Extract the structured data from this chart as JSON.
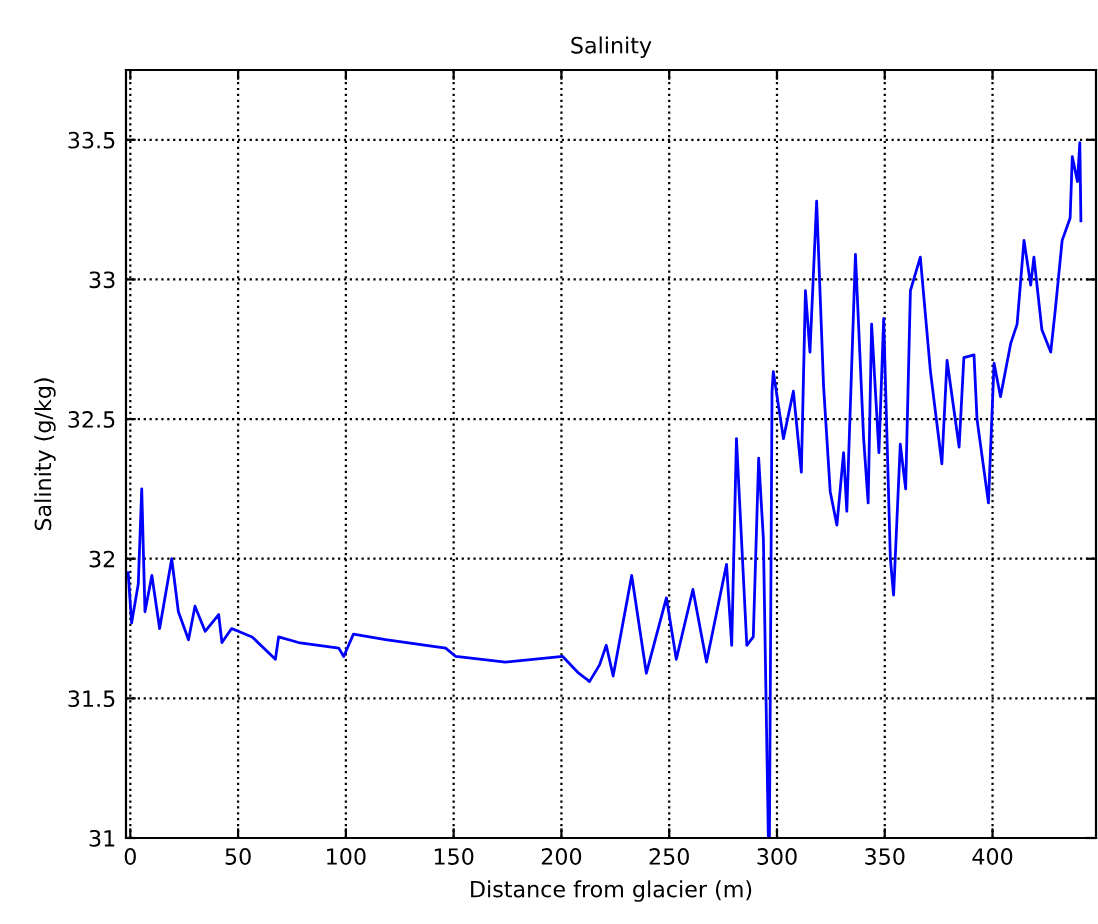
{
  "chart_data": {
    "type": "line",
    "title": "Salinity",
    "xlabel": "Distance from glacier (m)",
    "ylabel": "Salinity (g/kg)",
    "xlim": [
      -2,
      448
    ],
    "ylim": [
      31,
      33.75
    ],
    "xticks": [
      0,
      50,
      100,
      150,
      200,
      250,
      300,
      350,
      400
    ],
    "yticks": [
      31,
      31.5,
      32,
      32.5,
      33,
      33.5
    ],
    "grid": true,
    "line_style": "solid",
    "series": [
      {
        "color": "#0000ff",
        "x": [
          -1,
          0.6,
          3.7,
          5.3,
          6.8,
          10,
          13.6,
          19.2,
          22.3,
          27,
          30,
          34.7,
          41,
          42.5,
          47,
          56.5,
          67.3,
          68.8,
          78,
          96.7,
          99,
          103.5,
          118.4,
          146.3,
          151,
          174,
          200.6,
          208,
          211.5,
          213,
          217.7,
          220.8,
          224,
          232.6,
          239.4,
          248.7,
          253.3,
          261,
          267.3,
          276.6,
          279,
          281.2,
          286,
          289,
          291.5,
          293.7,
          296,
          296.5,
          297.7,
          298.3,
          303,
          307.6,
          311.3,
          313.2,
          315.3,
          318.4,
          321.6,
          324.7,
          327.8,
          330.9,
          332.4,
          336.4,
          340.2,
          342.3,
          343.9,
          347.3,
          349.5,
          352.6,
          354.1,
          357.2,
          359.7,
          361.9,
          366.5,
          371.2,
          376.5,
          378.9,
          384.5,
          386.7,
          391.4,
          392.8,
          398.1,
          400.7,
          403.7,
          408.4,
          411.4,
          414.6,
          417.7,
          419.2,
          422.9,
          427,
          429.1,
          432.3,
          436,
          437,
          439.4,
          440.5,
          441
        ],
        "values": [
          31.95,
          31.77,
          31.91,
          32.25,
          31.81,
          31.94,
          31.75,
          32.0,
          31.81,
          31.71,
          31.83,
          31.74,
          31.8,
          31.7,
          31.75,
          31.72,
          31.64,
          31.72,
          31.7,
          31.68,
          31.65,
          31.73,
          31.71,
          31.68,
          31.65,
          31.63,
          31.65,
          31.59,
          31.57,
          31.56,
          31.62,
          31.69,
          31.58,
          31.94,
          31.59,
          31.86,
          31.64,
          31.89,
          31.63,
          31.98,
          31.69,
          32.43,
          31.69,
          31.72,
          32.36,
          32.07,
          31.0,
          31.0,
          32.6,
          32.67,
          32.43,
          32.6,
          32.31,
          32.96,
          32.74,
          33.28,
          32.62,
          32.24,
          32.12,
          32.38,
          32.17,
          33.09,
          32.43,
          32.2,
          32.84,
          32.38,
          32.86,
          32.0,
          31.87,
          32.41,
          32.25,
          32.96,
          33.08,
          32.67,
          32.34,
          32.71,
          32.4,
          32.72,
          32.73,
          32.5,
          32.2,
          32.7,
          32.58,
          32.77,
          32.84,
          33.14,
          32.98,
          33.08,
          32.82,
          32.74,
          32.89,
          33.14,
          33.22,
          33.44,
          33.35,
          33.49,
          33.21
        ]
      }
    ]
  }
}
